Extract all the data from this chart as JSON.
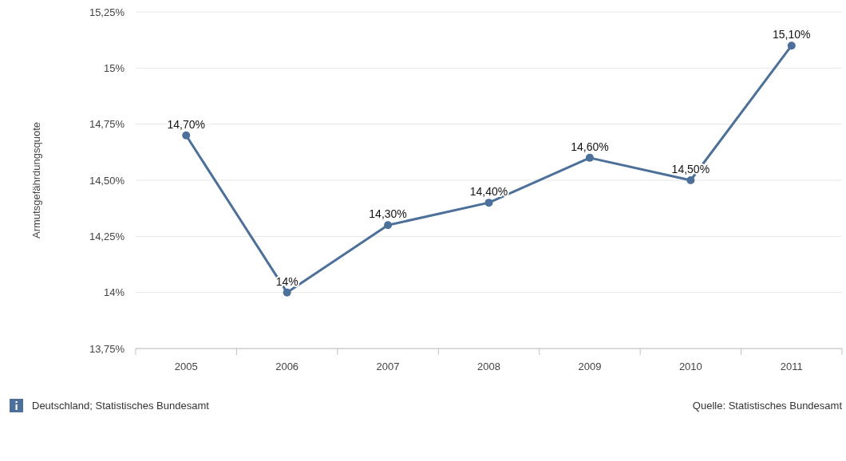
{
  "chart_data": {
    "type": "line",
    "ylabel": "Armutsgefährdungsquote",
    "categories": [
      "2005",
      "2006",
      "2007",
      "2008",
      "2009",
      "2010",
      "2011"
    ],
    "series": [
      {
        "color": "#4c7099",
        "values": [
          14.7,
          14.0,
          14.3,
          14.4,
          14.6,
          14.5,
          15.1
        ],
        "value_labels": [
          "14,70%",
          "14%",
          "14,30%",
          "14,40%",
          "14,60%",
          "14,50%",
          "15,10%"
        ]
      }
    ],
    "ylim": [
      13.75,
      15.25
    ],
    "yticks": [
      {
        "value": 13.75,
        "label": "13,75%"
      },
      {
        "value": 14,
        "label": "14%"
      },
      {
        "value": 14.25,
        "label": "14,25%"
      },
      {
        "value": 14.5,
        "label": "14,50%"
      },
      {
        "value": 14.75,
        "label": "14,75%"
      },
      {
        "value": 15,
        "label": "15%"
      },
      {
        "value": 15.25,
        "label": "15,25%"
      }
    ],
    "grid": "y",
    "marker": "circle",
    "line_style": "solid",
    "annotations": [
      "Deutschland; Statistisches Bundesamt",
      "Quelle: Statistisches Bundesamt"
    ]
  }
}
